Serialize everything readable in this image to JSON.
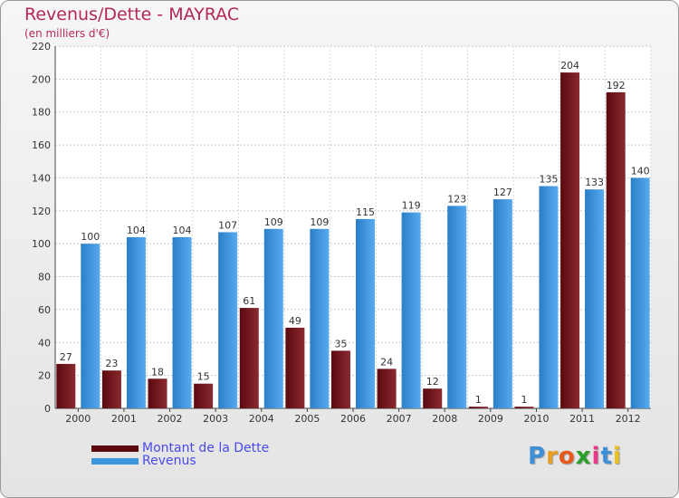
{
  "title": "Revenus/Dette - MAYRAC",
  "subtitle": "(en milliers d'€)",
  "colors": {
    "dette": "#7a1a1f",
    "revenus": "#3d96dc",
    "title": "#b5275a",
    "axis_text": "#333333"
  },
  "chart_data": {
    "type": "bar",
    "title": "Revenus/Dette - MAYRAC",
    "subtitle": "(en milliers d'€)",
    "categories": [
      "2000",
      "2001",
      "2002",
      "2003",
      "2004",
      "2005",
      "2006",
      "2007",
      "2008",
      "2009",
      "2010",
      "2011",
      "2012"
    ],
    "series": [
      {
        "name": "Montant de la Dette",
        "values": [
          27,
          23,
          18,
          15,
          61,
          49,
          35,
          24,
          12,
          1,
          1,
          204,
          192
        ]
      },
      {
        "name": "Revenus",
        "values": [
          100,
          104,
          104,
          107,
          109,
          109,
          115,
          119,
          123,
          127,
          135,
          133,
          140
        ]
      }
    ],
    "yticks": [
      0,
      20,
      40,
      60,
      80,
      100,
      120,
      140,
      160,
      180,
      200,
      220
    ],
    "ylim": [
      0,
      220
    ],
    "grid": true,
    "legend_position": "bottom-left"
  },
  "legend": [
    {
      "label": "Montant de la Dette",
      "color": "#5a0a0f"
    },
    {
      "label": "Revenus",
      "color": "#3d96dc"
    }
  ],
  "logo": {
    "text": "Proxiti",
    "letter_colors": [
      "#3d8fd8",
      "#e8a020",
      "#e85a1a",
      "#2aa02a",
      "#e83a8a",
      "#3d8fd8",
      "#e8c020"
    ]
  }
}
